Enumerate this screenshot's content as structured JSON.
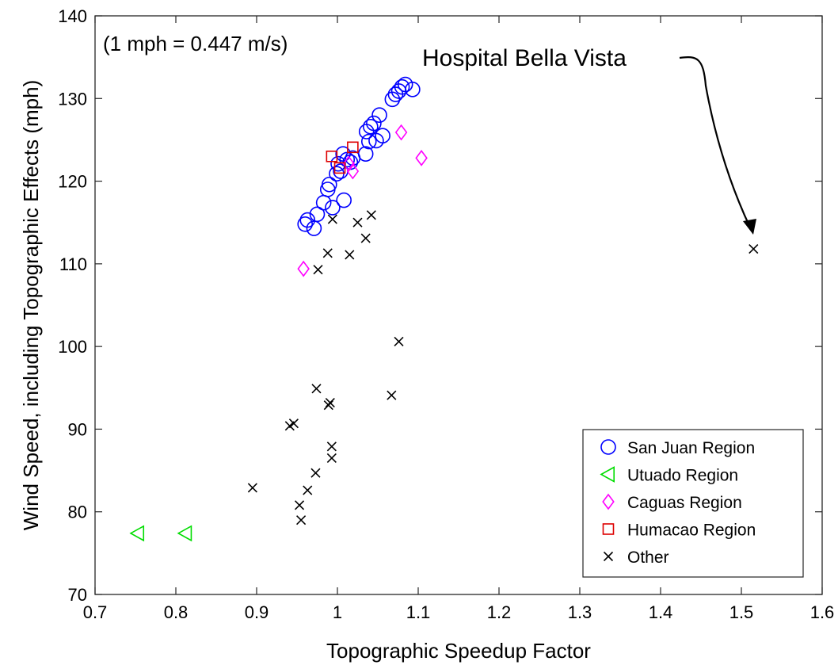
{
  "chart_data": {
    "type": "scatter",
    "title": "",
    "xlabel": "Topographic Speedup Factor",
    "ylabel": "Wind Speed, including Topographic Effects (mph)",
    "xlim": [
      0.7,
      1.6
    ],
    "ylim": [
      70,
      140
    ],
    "xticks": [
      0.7,
      0.8,
      0.9,
      1,
      1.1,
      1.2,
      1.3,
      1.4,
      1.5,
      1.6
    ],
    "yticks": [
      70,
      80,
      90,
      100,
      110,
      120,
      130,
      140
    ],
    "xtick_labels": [
      "0.7",
      "0.8",
      "0.9",
      "1",
      "1.1",
      "1.2",
      "1.3",
      "1.4",
      "1.5",
      "1.6"
    ],
    "ytick_labels": [
      "70",
      "80",
      "90",
      "100",
      "110",
      "120",
      "130",
      "140"
    ],
    "grid": false,
    "legend_position": "bottom-right",
    "note": "(1 mph = 0.447 m/s)",
    "annotation": {
      "text": "Hospital Bella Vista",
      "x": 1.515,
      "y": 111.8
    },
    "series": [
      {
        "name": "San Juan Region",
        "marker": "circle",
        "color": "#0000ff",
        "points": [
          [
            0.96,
            114.8
          ],
          [
            0.963,
            115.3
          ],
          [
            0.971,
            114.3
          ],
          [
            0.975,
            116.0
          ],
          [
            0.983,
            117.4
          ],
          [
            0.988,
            119.0
          ],
          [
            0.99,
            119.6
          ],
          [
            0.994,
            116.8
          ],
          [
            0.999,
            120.9
          ],
          [
            1.001,
            122.1
          ],
          [
            1.004,
            121.2
          ],
          [
            1.007,
            123.3
          ],
          [
            1.008,
            117.7
          ],
          [
            1.012,
            122.6
          ],
          [
            1.016,
            122.3
          ],
          [
            1.019,
            122.8
          ],
          [
            1.035,
            123.3
          ],
          [
            1.036,
            126.0
          ],
          [
            1.039,
            124.8
          ],
          [
            1.041,
            126.6
          ],
          [
            1.045,
            127.0
          ],
          [
            1.048,
            124.9
          ],
          [
            1.052,
            128.0
          ],
          [
            1.056,
            125.5
          ],
          [
            1.068,
            129.9
          ],
          [
            1.072,
            130.5
          ],
          [
            1.076,
            130.9
          ],
          [
            1.08,
            131.4
          ],
          [
            1.084,
            131.7
          ],
          [
            1.093,
            131.1
          ]
        ]
      },
      {
        "name": "Utuado Region",
        "marker": "triangle-left",
        "color": "#00dd00",
        "points": [
          [
            0.753,
            77.4
          ],
          [
            0.812,
            77.4
          ]
        ]
      },
      {
        "name": "Caguas Region",
        "marker": "diamond",
        "color": "#ff00ff",
        "points": [
          [
            0.958,
            109.4
          ],
          [
            1.014,
            122.1
          ],
          [
            1.019,
            121.2
          ],
          [
            1.079,
            125.9
          ],
          [
            1.104,
            122.8
          ]
        ]
      },
      {
        "name": "Humacao Region",
        "marker": "square",
        "color": "#dd0000",
        "points": [
          [
            0.993,
            123.0
          ],
          [
            1.003,
            121.6
          ],
          [
            1.019,
            124.1
          ]
        ]
      },
      {
        "name": "Other",
        "marker": "x",
        "color": "#000000",
        "points": [
          [
            0.895,
            82.9
          ],
          [
            0.941,
            90.4
          ],
          [
            0.946,
            90.7
          ],
          [
            0.953,
            80.8
          ],
          [
            0.955,
            79.0
          ],
          [
            0.963,
            82.6
          ],
          [
            0.973,
            84.7
          ],
          [
            0.974,
            94.9
          ],
          [
            0.976,
            109.3
          ],
          [
            0.988,
            111.3
          ],
          [
            0.989,
            92.9
          ],
          [
            0.991,
            93.2
          ],
          [
            0.993,
            87.9
          ],
          [
            0.993,
            86.5
          ],
          [
            0.994,
            115.4
          ],
          [
            1.015,
            111.1
          ],
          [
            1.025,
            115.0
          ],
          [
            1.035,
            113.1
          ],
          [
            1.042,
            115.9
          ],
          [
            1.067,
            94.1
          ],
          [
            1.076,
            100.6
          ],
          [
            1.515,
            111.8
          ]
        ]
      }
    ]
  }
}
